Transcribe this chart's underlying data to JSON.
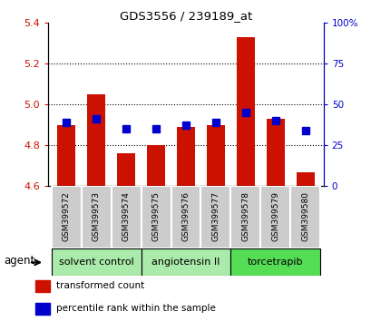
{
  "title": "GDS3556 / 239189_at",
  "samples": [
    "GSM399572",
    "GSM399573",
    "GSM399574",
    "GSM399575",
    "GSM399576",
    "GSM399577",
    "GSM399578",
    "GSM399579",
    "GSM399580"
  ],
  "red_values": [
    4.9,
    5.05,
    4.76,
    4.8,
    4.89,
    4.9,
    5.33,
    4.93,
    4.67
  ],
  "blue_values": [
    4.91,
    4.93,
    4.88,
    4.88,
    4.9,
    4.91,
    4.96,
    4.92,
    4.87
  ],
  "ymin": 4.6,
  "ymax": 5.4,
  "y_ticks": [
    4.6,
    4.8,
    5.0,
    5.2,
    5.4
  ],
  "right_yticks": [
    0,
    25,
    50,
    75,
    100
  ],
  "right_yticklabels": [
    "0",
    "25",
    "50",
    "75",
    "100%"
  ],
  "groups": [
    {
      "label": "solvent control",
      "start": 0,
      "end": 3,
      "color": "#aaeaaa"
    },
    {
      "label": "angiotensin II",
      "start": 3,
      "end": 6,
      "color": "#aaeaaa"
    },
    {
      "label": "torcetrapib",
      "start": 6,
      "end": 9,
      "color": "#55dd55"
    }
  ],
  "legend_red_label": "transformed count",
  "legend_blue_label": "percentile rank within the sample",
  "agent_label": "agent",
  "bar_bottom": 4.6,
  "red_color": "#cc1100",
  "blue_color": "#0000cc",
  "bar_width": 0.6,
  "blue_marker_size": 6,
  "grid_dotted_values": [
    4.8,
    5.0,
    5.2
  ],
  "cell_color": "#cccccc",
  "cell_edge_color": "#ffffff"
}
